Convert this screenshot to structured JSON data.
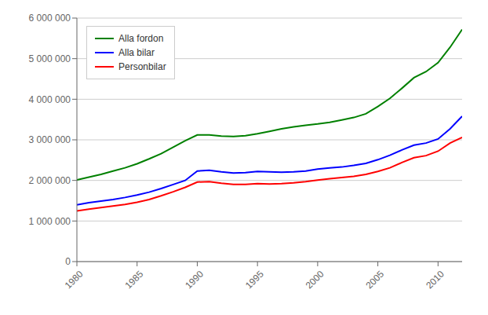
{
  "chart_data": {
    "type": "line",
    "x": [
      1980,
      1981,
      1982,
      1983,
      1984,
      1985,
      1986,
      1987,
      1988,
      1989,
      1990,
      1991,
      1992,
      1993,
      1994,
      1995,
      1996,
      1997,
      1998,
      1999,
      2000,
      2001,
      2002,
      2003,
      2004,
      2005,
      2006,
      2007,
      2008,
      2009,
      2010,
      2011,
      2012
    ],
    "series": [
      {
        "name": "Alla fordon",
        "color": "#008000",
        "values": [
          2010000,
          2080000,
          2150000,
          2230000,
          2310000,
          2410000,
          2530000,
          2660000,
          2820000,
          2980000,
          3120000,
          3120000,
          3090000,
          3080000,
          3100000,
          3150000,
          3210000,
          3270000,
          3320000,
          3360000,
          3390000,
          3430000,
          3490000,
          3550000,
          3640000,
          3820000,
          4020000,
          4270000,
          4530000,
          4680000,
          4900000,
          5280000,
          5720000
        ]
      },
      {
        "name": "Alla bilar",
        "color": "#0000FF",
        "values": [
          1400000,
          1450000,
          1490000,
          1530000,
          1580000,
          1640000,
          1710000,
          1800000,
          1900000,
          2000000,
          2230000,
          2250000,
          2210000,
          2180000,
          2190000,
          2220000,
          2210000,
          2200000,
          2210000,
          2230000,
          2280000,
          2310000,
          2330000,
          2370000,
          2420000,
          2510000,
          2620000,
          2750000,
          2870000,
          2920000,
          3020000,
          3270000,
          3580000
        ]
      },
      {
        "name": "Personbilar",
        "color": "#FF0000",
        "values": [
          1250000,
          1290000,
          1330000,
          1370000,
          1410000,
          1460000,
          1530000,
          1620000,
          1720000,
          1830000,
          1960000,
          1970000,
          1930000,
          1900000,
          1900000,
          1920000,
          1910000,
          1920000,
          1940000,
          1970000,
          2010000,
          2040000,
          2070000,
          2100000,
          2150000,
          2220000,
          2310000,
          2440000,
          2560000,
          2610000,
          2720000,
          2920000,
          3060000
        ]
      }
    ],
    "xlim": [
      1980,
      2012
    ],
    "xticks": [
      1980,
      1985,
      1990,
      1995,
      2000,
      2005,
      2010
    ],
    "ylim": [
      0,
      6000000
    ],
    "yticks": [
      0,
      {
        "value": 1000000,
        "label": "1 000 000"
      },
      {
        "value": 2000000,
        "label": "2 000 000"
      },
      {
        "value": 3000000,
        "label": "3 000 000"
      },
      {
        "value": 4000000,
        "label": "4 000 000"
      },
      {
        "value": 5000000,
        "label": "5 000 000"
      },
      {
        "value": 6000000,
        "label": "6 000 000"
      }
    ],
    "grid": true,
    "legend": "upper left"
  }
}
